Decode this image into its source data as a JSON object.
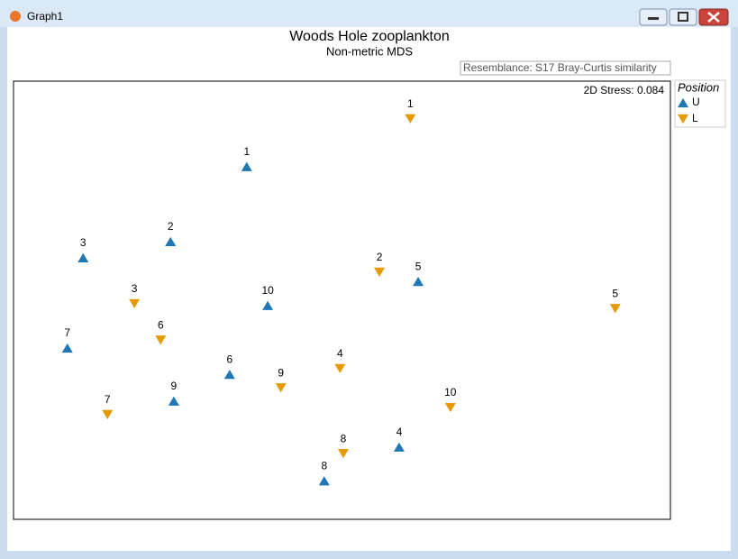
{
  "window": {
    "title": "Graph1"
  },
  "chart_data": {
    "type": "scatter",
    "title": "Woods Hole zooplankton",
    "subtitle": "Non-metric MDS",
    "annotations": [
      "Resemblance: S17 Bray-Curtis similarity",
      "2D Stress: 0.084"
    ],
    "legend_title": "Position",
    "legend": "outside-top-right",
    "xlim": [
      0,
      100
    ],
    "ylim": [
      0,
      100
    ],
    "series": [
      {
        "name": "U",
        "marker": "triangle-up",
        "color": "#1f77b4",
        "labels": [
          "1",
          "2",
          "3",
          "4",
          "5",
          "6",
          "7",
          "8",
          "9",
          "10"
        ],
        "x": [
          35.5,
          23.9,
          10.6,
          58.7,
          61.6,
          32.9,
          8.2,
          47.3,
          24.4,
          38.7
        ],
        "values": [
          80.5,
          63.4,
          59.7,
          16.5,
          54.3,
          33.1,
          39.1,
          8.8,
          27.0,
          48.8
        ]
      },
      {
        "name": "L",
        "marker": "triangle-down",
        "color": "#e69a00",
        "labels": [
          "1",
          "2",
          "3",
          "4",
          "5",
          "6",
          "7",
          "8",
          "9",
          "10"
        ],
        "x": [
          60.4,
          55.7,
          18.4,
          49.7,
          91.6,
          22.4,
          14.3,
          50.2,
          40.7,
          66.5
        ],
        "values": [
          91.4,
          56.4,
          49.2,
          34.4,
          48.1,
          40.9,
          23.9,
          15.0,
          30.0,
          25.5
        ]
      }
    ]
  }
}
